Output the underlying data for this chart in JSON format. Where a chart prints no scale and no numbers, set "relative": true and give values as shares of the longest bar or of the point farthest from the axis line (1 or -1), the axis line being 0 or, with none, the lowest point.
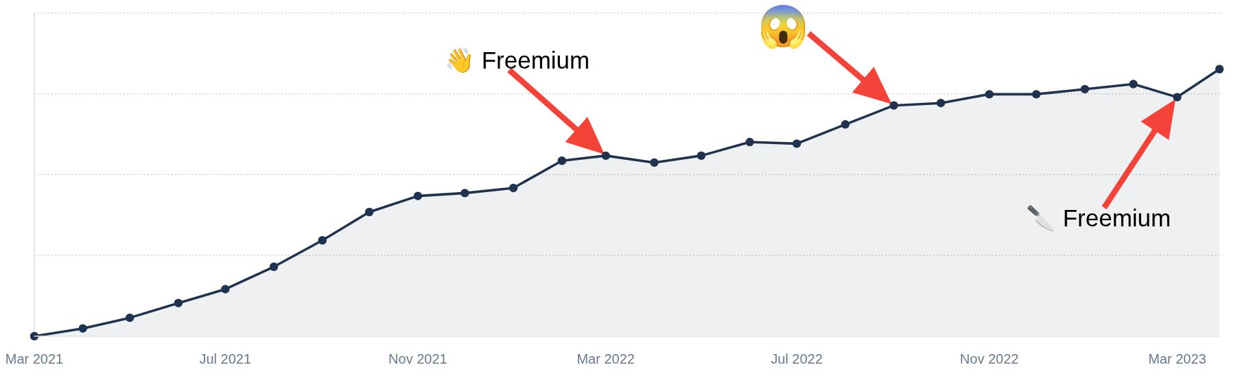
{
  "chart_data": {
    "type": "area",
    "x": [
      "2021-03",
      "2021-04",
      "2021-05",
      "2021-06",
      "2021-07",
      "2021-08",
      "2021-09",
      "2021-10",
      "2021-11",
      "2021-12",
      "2022-01",
      "2022-02",
      "2022-03",
      "2022-04",
      "2022-05",
      "2022-06",
      "2022-07",
      "2022-08",
      "2022-09",
      "2022-10",
      "2022-11",
      "2022-12",
      "2023-01",
      "2023-02",
      "2023-03",
      "2023-03-28"
    ],
    "series": [
      {
        "color": "#1f3350",
        "values": [
          0.0,
          0.029,
          0.069,
          0.124,
          0.176,
          0.26,
          0.359,
          0.465,
          0.525,
          0.536,
          0.555,
          0.657,
          0.676,
          0.65,
          0.676,
          0.727,
          0.721,
          0.793,
          0.864,
          0.873,
          0.906,
          0.906,
          0.925,
          0.944,
          0.895,
          1.0
        ]
      }
    ],
    "relative": true,
    "xlim": [
      "2021-03",
      "2023-03-28"
    ],
    "xticks": [
      {
        "value": "2021-03",
        "label": "Mar 2021"
      },
      {
        "value": "2021-07",
        "label": "Jul 2021"
      },
      {
        "value": "2021-11",
        "label": "Nov 2021"
      },
      {
        "value": "2022-03",
        "label": "Mar 2022"
      },
      {
        "value": "2022-07",
        "label": "Jul 2022"
      },
      {
        "value": "2022-11",
        "label": "Nov 2022"
      },
      {
        "value": "2023-03",
        "label": "Mar 2023"
      }
    ],
    "tick_labels": "x",
    "grid": "y",
    "marker": "circle",
    "line_style": "solid",
    "annotations": [
      "👋 Freemium",
      {
        "text": "😱",
        "x": "2022-09",
        "y": 0.864
      },
      "🔪 Freemium"
    ]
  }
}
